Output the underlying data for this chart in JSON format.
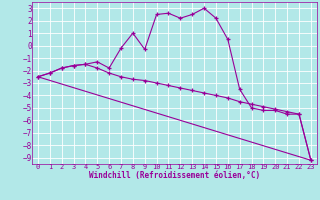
{
  "xlabel": "Windchill (Refroidissement éolien,°C)",
  "background_color": "#b2e8e8",
  "line_color": "#990099",
  "grid_color": "#ffffff",
  "xlim": [
    -0.5,
    23.5
  ],
  "ylim": [
    -9.5,
    3.5
  ],
  "yticks": [
    3,
    2,
    1,
    0,
    -1,
    -2,
    -3,
    -4,
    -5,
    -6,
    -7,
    -8,
    -9
  ],
  "xticks": [
    0,
    1,
    2,
    3,
    4,
    5,
    6,
    7,
    8,
    9,
    10,
    11,
    12,
    13,
    14,
    15,
    16,
    17,
    18,
    19,
    20,
    21,
    22,
    23
  ],
  "curve1_x": [
    0,
    1,
    2,
    3,
    4,
    5,
    6,
    7,
    8,
    9,
    10,
    11,
    12,
    13,
    14,
    15,
    16,
    17,
    18,
    19,
    20,
    21,
    22,
    23
  ],
  "curve1_y": [
    -2.5,
    -2.2,
    -1.8,
    -1.6,
    -1.5,
    -1.3,
    -1.8,
    -0.2,
    1.0,
    -0.3,
    2.5,
    2.6,
    2.2,
    2.5,
    3.0,
    2.2,
    0.5,
    -3.5,
    -5.0,
    -5.2,
    -5.2,
    -5.5,
    -5.5,
    -9.2
  ],
  "curve2_x": [
    0,
    1,
    2,
    3,
    4,
    5,
    6,
    7,
    8,
    9,
    10,
    11,
    12,
    13,
    14,
    15,
    16,
    17,
    18,
    19,
    20,
    21,
    22,
    23
  ],
  "curve2_y": [
    -2.5,
    -2.2,
    -1.8,
    -1.6,
    -1.5,
    -1.8,
    -2.2,
    -2.5,
    -2.7,
    -2.8,
    -3.0,
    -3.2,
    -3.4,
    -3.6,
    -3.8,
    -4.0,
    -4.2,
    -4.5,
    -4.7,
    -4.9,
    -5.1,
    -5.3,
    -5.5,
    -9.2
  ],
  "curve3_x": [
    0,
    23
  ],
  "curve3_y": [
    -2.5,
    -9.2
  ],
  "tick_fontsize": 5.0,
  "xlabel_fontsize": 5.5
}
